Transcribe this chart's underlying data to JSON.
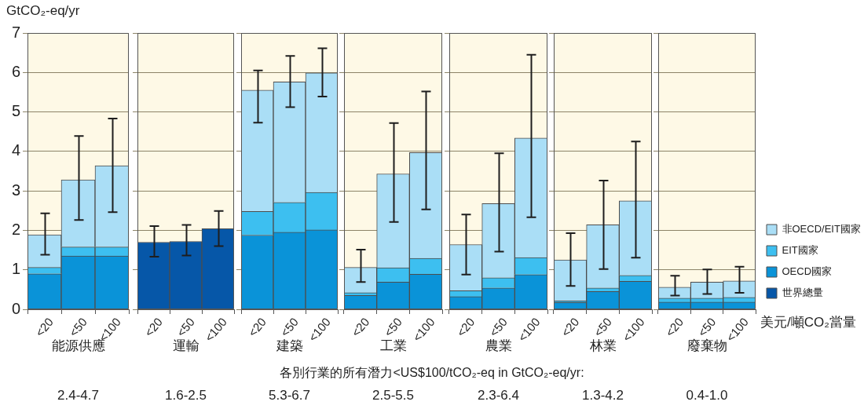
{
  "chart_data": [
    {
      "type": "bar",
      "ylabel": "GtCO₂-eq/yr",
      "xlabel": "能源供應",
      "categories": [
        "<20",
        "<50",
        "<100"
      ],
      "stacked": true,
      "ylim": [
        0,
        7
      ],
      "yticks": [
        0,
        1,
        2,
        3,
        4,
        5,
        6,
        7
      ],
      "grid": "y",
      "series": [
        {
          "color": "#0a93d8",
          "values": [
            0.9,
            1.35,
            1.35
          ]
        },
        {
          "color": "#3dbff0",
          "values": [
            0.16,
            0.23,
            0.23
          ]
        },
        {
          "color": "#aadef6",
          "values": [
            0.83,
            1.7,
            2.06
          ],
          "errors": [
            [
              1.38,
              2.43
            ],
            [
              2.26,
              4.39
            ],
            [
              2.46,
              4.83
            ]
          ]
        }
      ],
      "annotations": [
        "2.4-4.7",
        "各別行業的所有潛力<US$100/tCO₂-eq in GtCO₂-eq/yr:"
      ]
    },
    {
      "type": "bar",
      "xlabel": "運輸",
      "categories": [
        "<20",
        "<50",
        "<100"
      ],
      "stacked": true,
      "ylim": [
        0,
        7
      ],
      "yticks": [
        0,
        1,
        2,
        3,
        4,
        5,
        6,
        7
      ],
      "grid": "y",
      "tick_labels": "x",
      "series": [
        {
          "color": "#0657a8",
          "values": [
            1.7,
            1.72,
            2.04
          ],
          "errors": [
            [
              1.33,
              2.11
            ],
            [
              1.36,
              2.14
            ],
            [
              1.6,
              2.49
            ]
          ]
        }
      ],
      "annotations": [
        "1.6-2.5"
      ]
    },
    {
      "type": "bar",
      "xlabel": "建築",
      "categories": [
        "<20",
        "<50",
        "<100"
      ],
      "stacked": true,
      "ylim": [
        0,
        7
      ],
      "yticks": [
        0,
        1,
        2,
        3,
        4,
        5,
        6,
        7
      ],
      "grid": "y",
      "tick_labels": "x",
      "series": [
        {
          "color": "#0a93d8",
          "values": [
            1.88,
            1.95,
            2.01
          ]
        },
        {
          "color": "#3dbff0",
          "values": [
            0.6,
            0.76,
            0.95
          ]
        },
        {
          "color": "#aadef6",
          "values": [
            3.07,
            3.05,
            3.03
          ],
          "errors": [
            [
              4.73,
              6.05
            ],
            [
              5.12,
              6.42
            ],
            [
              5.39,
              6.61
            ]
          ]
        }
      ],
      "annotations": [
        "5.3-6.7"
      ]
    },
    {
      "type": "bar",
      "xlabel": "工業",
      "categories": [
        "<20",
        "<50",
        "<100"
      ],
      "stacked": true,
      "ylim": [
        0,
        7
      ],
      "yticks": [
        0,
        1,
        2,
        3,
        4,
        5,
        6,
        7
      ],
      "grid": "y",
      "tick_labels": "x",
      "series": [
        {
          "color": "#0a93d8",
          "values": [
            0.35,
            0.69,
            0.89
          ]
        },
        {
          "color": "#3dbff0",
          "values": [
            0.07,
            0.36,
            0.4
          ]
        },
        {
          "color": "#aadef6",
          "values": [
            0.64,
            2.38,
            2.68
          ],
          "errors": [
            [
              0.69,
              1.51
            ],
            [
              2.21,
              4.72
            ],
            [
              2.53,
              5.52
            ]
          ]
        }
      ],
      "annotations": [
        "2.5-5.5"
      ]
    },
    {
      "type": "bar",
      "xlabel": "農業",
      "categories": [
        "<20",
        "<50",
        "<100"
      ],
      "stacked": true,
      "ylim": [
        0,
        7
      ],
      "yticks": [
        0,
        1,
        2,
        3,
        4,
        5,
        6,
        7
      ],
      "grid": "y",
      "tick_labels": "x",
      "series": [
        {
          "color": "#0a93d8",
          "values": [
            0.32,
            0.54,
            0.88
          ]
        },
        {
          "color": "#3dbff0",
          "values": [
            0.15,
            0.26,
            0.43
          ]
        },
        {
          "color": "#aadef6",
          "values": [
            1.17,
            1.88,
            3.03
          ],
          "errors": [
            [
              0.88,
              2.4
            ],
            [
              1.46,
              3.95
            ],
            [
              2.33,
              6.45
            ]
          ]
        }
      ],
      "annotations": [
        "2.3-6.4"
      ]
    },
    {
      "type": "bar",
      "xlabel": "林業",
      "categories": [
        "<20",
        "<50",
        "<100"
      ],
      "stacked": true,
      "ylim": [
        0,
        7
      ],
      "yticks": [
        0,
        1,
        2,
        3,
        4,
        5,
        6,
        7
      ],
      "grid": "y",
      "tick_labels": "x",
      "series": [
        {
          "color": "#0a93d8",
          "values": [
            0.17,
            0.45,
            0.71
          ]
        },
        {
          "color": "#3dbff0",
          "values": [
            0.04,
            0.09,
            0.15
          ]
        },
        {
          "color": "#aadef6",
          "values": [
            1.04,
            1.6,
            1.89
          ],
          "errors": [
            [
              0.59,
              1.93
            ],
            [
              1.02,
              3.26
            ],
            [
              1.31,
              4.25
            ]
          ]
        }
      ],
      "annotations": [
        "1.3-4.2"
      ]
    },
    {
      "type": "bar",
      "xlabel": "廢棄物",
      "categories": [
        "<20",
        "<50",
        "<100"
      ],
      "stacked": true,
      "ylim": [
        0,
        7
      ],
      "yticks": [
        0,
        1,
        2,
        3,
        4,
        5,
        6,
        7
      ],
      "grid": "y",
      "tick_labels": "x",
      "legend": "bottom right",
      "series": [
        {
          "name": "世界總量",
          "color": "#0657a8",
          "values": [
            null,
            null,
            null
          ]
        },
        {
          "name": "OECD國家",
          "color": "#0a93d8",
          "values": [
            0.18,
            0.18,
            0.18
          ]
        },
        {
          "name": "EIT國家",
          "color": "#3dbff0",
          "values": [
            0.1,
            0.1,
            0.12
          ]
        },
        {
          "name": "非OECD/EIT國家",
          "color": "#aadef6",
          "values": [
            0.28,
            0.41,
            0.42
          ],
          "errors": [
            [
              0.35,
              0.85
            ],
            [
              0.39,
              1.01
            ],
            [
              0.42,
              1.08
            ]
          ]
        }
      ],
      "annotations": [
        "0.4-1.0",
        "美元/噸CO₂當量"
      ]
    }
  ]
}
